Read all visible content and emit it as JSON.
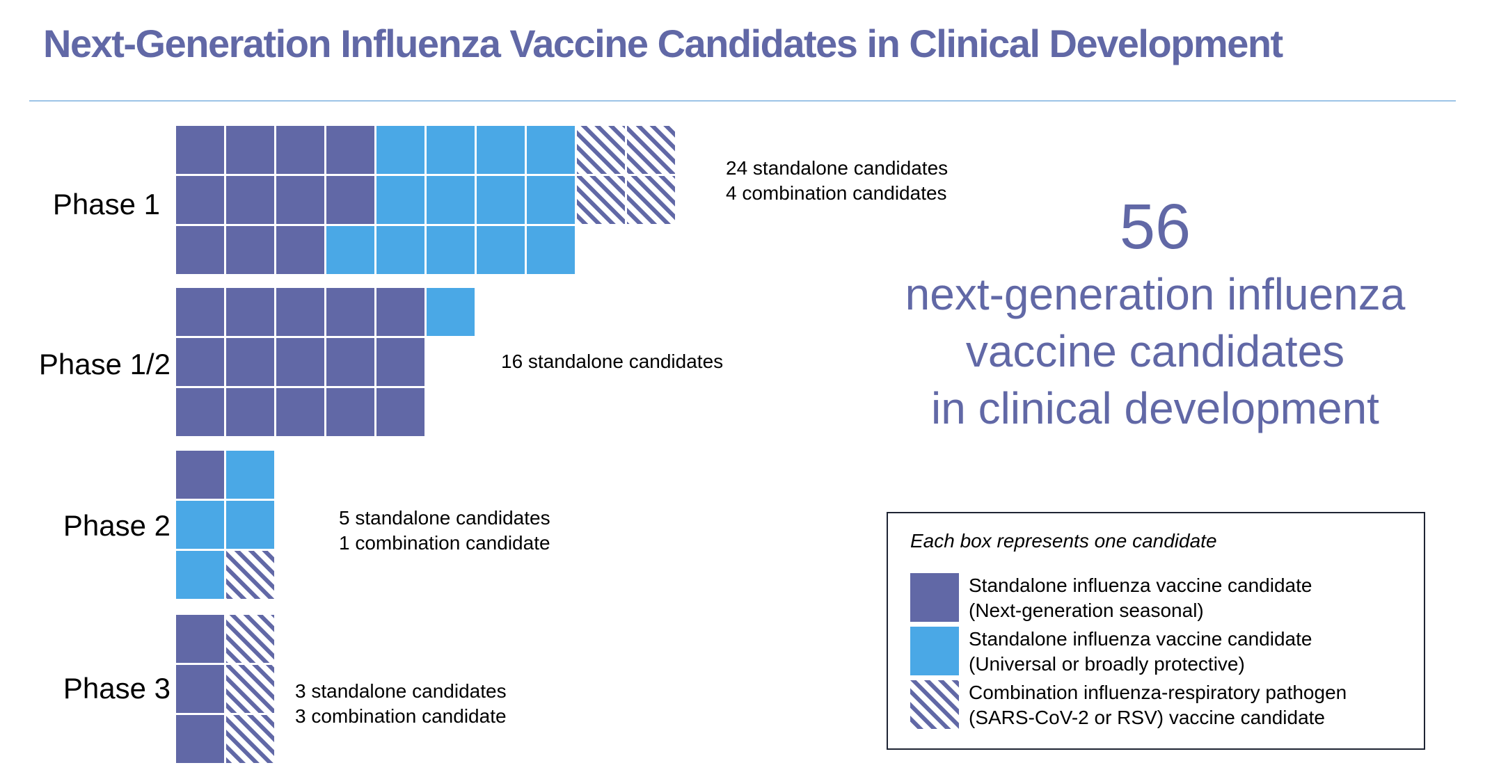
{
  "title": "Next-Generation Influenza Vaccine Candidates in Clinical Development",
  "colors": {
    "seasonal": "#6168a6",
    "universal": "#4aa8e6",
    "combination_stripe": "#6168a6",
    "title": "#6168a6",
    "rule": "#9cc3e6"
  },
  "summary": {
    "count": "56",
    "lines": [
      "next-generation influenza",
      "vaccine candidates",
      "in clinical development"
    ]
  },
  "legend": {
    "title": "Each box represents one candidate",
    "items": [
      {
        "key": "seasonal",
        "line1": "Standalone influenza vaccine candidate",
        "line2": "(Next-generation seasonal)"
      },
      {
        "key": "universal",
        "line1": "Standalone influenza vaccine candidate",
        "line2": "(Universal or broadly protective)"
      },
      {
        "key": "combination",
        "line1": "Combination influenza-respiratory pathogen",
        "line2": "(SARS-CoV-2 or RSV) vaccine candidate"
      }
    ]
  },
  "chart_data": {
    "type": "waffle",
    "phases": [
      {
        "label": "Phase 1",
        "rows": [
          [
            "seasonal",
            "seasonal",
            "seasonal",
            "seasonal",
            "universal",
            "universal",
            "universal",
            "universal",
            "combination",
            "combination"
          ],
          [
            "seasonal",
            "seasonal",
            "seasonal",
            "seasonal",
            "universal",
            "universal",
            "universal",
            "universal",
            "combination",
            "combination"
          ],
          [
            "seasonal",
            "seasonal",
            "seasonal",
            "universal",
            "universal",
            "universal",
            "universal",
            "universal"
          ]
        ],
        "counts": {
          "seasonal": 11,
          "universal": 13,
          "combination": 4
        },
        "text": [
          "24 standalone candidates",
          "4 combination candidates"
        ]
      },
      {
        "label": "Phase 1/2",
        "rows": [
          [
            "seasonal",
            "seasonal",
            "seasonal",
            "seasonal",
            "seasonal",
            "universal"
          ],
          [
            "seasonal",
            "seasonal",
            "seasonal",
            "seasonal",
            "seasonal"
          ],
          [
            "seasonal",
            "seasonal",
            "seasonal",
            "seasonal",
            "seasonal"
          ]
        ],
        "counts": {
          "seasonal": 15,
          "universal": 1,
          "combination": 0
        },
        "text": [
          "16 standalone candidates"
        ]
      },
      {
        "label": "Phase 2",
        "rows": [
          [
            "seasonal",
            "universal"
          ],
          [
            "universal",
            "universal"
          ],
          [
            "universal",
            "combination"
          ]
        ],
        "counts": {
          "seasonal": 1,
          "universal": 4,
          "combination": 1
        },
        "text": [
          "5 standalone candidates",
          "1 combination candidate"
        ]
      },
      {
        "label": "Phase 3",
        "rows": [
          [
            "seasonal",
            "combination"
          ],
          [
            "seasonal",
            "combination"
          ],
          [
            "seasonal",
            "combination"
          ]
        ],
        "counts": {
          "seasonal": 3,
          "universal": 0,
          "combination": 3
        },
        "text": [
          "3 standalone candidates",
          "3 combination candidate"
        ]
      }
    ]
  }
}
